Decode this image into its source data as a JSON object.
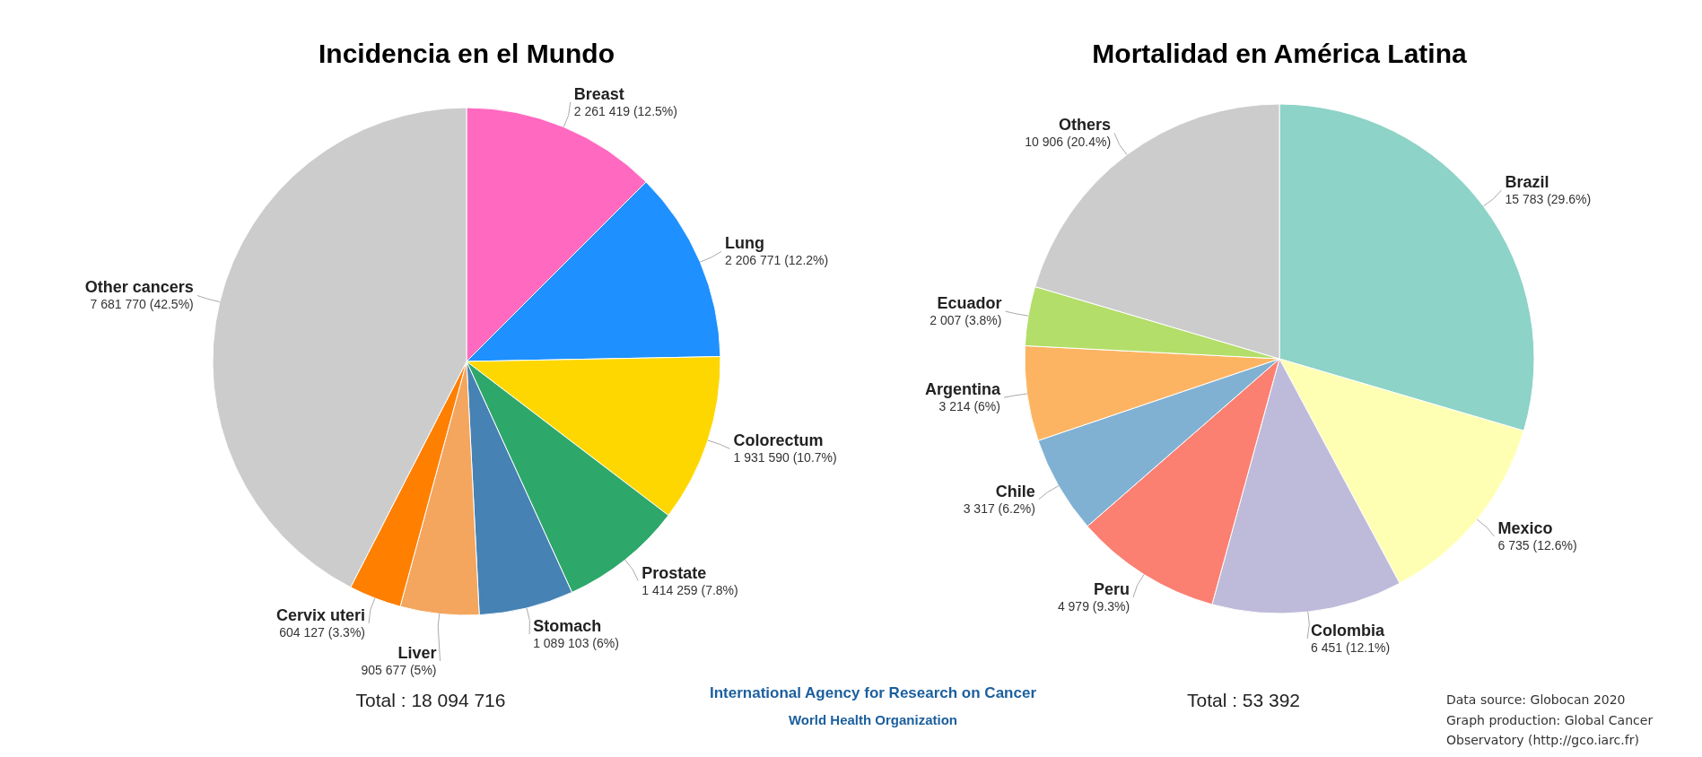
{
  "chart_data": [
    {
      "type": "pie",
      "title": "Incidencia en el Mundo",
      "categories": [
        "Breast",
        "Lung",
        "Colorectum",
        "Prostate",
        "Stomach",
        "Liver",
        "Cervix uteri",
        "Other cancers"
      ],
      "values": [
        2261419,
        2206771,
        1931590,
        1414259,
        1089103,
        905677,
        604127,
        7681770
      ],
      "value_labels": [
        "2 261 419 (12.5%)",
        "2 206 771 (12.2%)",
        "1 931 590 (10.7%)",
        "1 414 259 (7.8%)",
        "1 089 103 (6%)",
        "905 677 (5%)",
        "604 127 (3.3%)",
        "7 681 770 (42.5%)"
      ],
      "colors": [
        "#ff69c0",
        "#1e90ff",
        "#ffd700",
        "#2ea86a",
        "#4682b4",
        "#f4a55e",
        "#ff7f00",
        "#cccccc"
      ],
      "annotations": [
        "Total : 18 094 716",
        "International Agency for Research on Cancer",
        "World Health Organization"
      ]
    },
    {
      "type": "pie",
      "title": "Mortalidad en América Latina",
      "categories": [
        "Brazil",
        "Mexico",
        "Colombia",
        "Peru",
        "Chile",
        "Argentina",
        "Ecuador",
        "Others"
      ],
      "values": [
        15783,
        6735,
        6451,
        4979,
        3317,
        3214,
        2007,
        10906
      ],
      "value_labels": [
        "15 783 (29.6%)",
        "6 735 (12.6%)",
        "6 451 (12.1%)",
        "4 979 (9.3%)",
        "3 317 (6.2%)",
        "3 214 (6%)",
        "2 007 (3.8%)",
        "10 906 (20.4%)"
      ],
      "colors": [
        "#8dd3c7",
        "#ffffb3",
        "#bebada",
        "#fb8072",
        "#80b1d3",
        "#fdb462",
        "#b3de69",
        "#cccccc"
      ],
      "annotations": [
        "Total : 53 392",
        "Data source: Globocan 2020",
        "Graph production: Global Cancer Observatory (http://gco.iarc.fr)"
      ]
    }
  ]
}
